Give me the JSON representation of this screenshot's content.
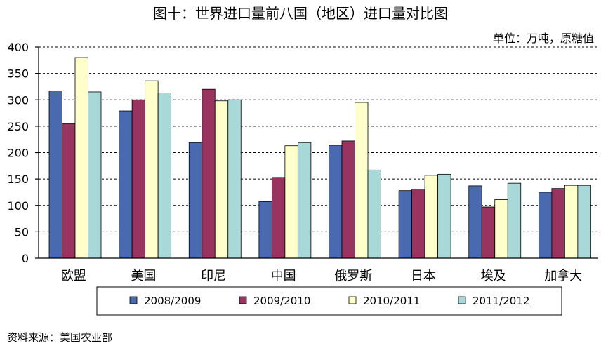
{
  "title": "图十：世界进口量前八国（地区）进口量对比图",
  "unit": "单位：万吨，原糖值",
  "source": "资料来源：美国农业部",
  "chart_data": {
    "type": "bar",
    "categories": [
      "欧盟",
      "美国",
      "印尼",
      "中国",
      "俄罗斯",
      "日本",
      "埃及",
      "加拿大"
    ],
    "series": [
      {
        "name": "2008/2009",
        "color": "#4a6ab0",
        "values": [
          317,
          279,
          219,
          107,
          214,
          128,
          137,
          125
        ]
      },
      {
        "name": "2009/2010",
        "color": "#99335f",
        "values": [
          255,
          300,
          320,
          153,
          222,
          131,
          97,
          132
        ]
      },
      {
        "name": "2010/2011",
        "color": "#ffffcc",
        "values": [
          380,
          336,
          298,
          213,
          295,
          157,
          111,
          138
        ]
      },
      {
        "name": "2011/2012",
        "color": "#a8d8d8",
        "values": [
          315,
          313,
          300,
          219,
          167,
          159,
          142,
          138
        ]
      }
    ],
    "ylim": [
      0,
      400
    ],
    "yticks": [
      0,
      50,
      100,
      150,
      200,
      250,
      300,
      350,
      400
    ],
    "grid": true,
    "legend": "bottom"
  }
}
